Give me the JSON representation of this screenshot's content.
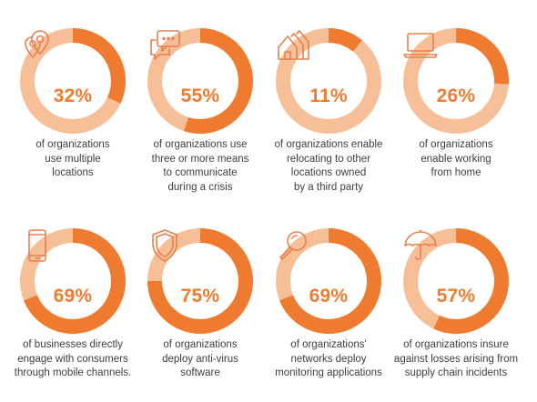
{
  "colors": {
    "filled": "#ee7b30",
    "track": "#f7bf97",
    "icon": "#e8804c",
    "text": "#3e3e3e"
  },
  "chart_data": {
    "type": "pie",
    "title": "",
    "items": [
      {
        "value": 32,
        "label": "32%",
        "description": "of organizations\nuse multiple\nlocations",
        "icon": "location-pins-icon"
      },
      {
        "value": 55,
        "label": "55%",
        "description": "of organizations use\nthree or more means\nto communicate\nduring a crisis",
        "icon": "chat-bubbles-icon"
      },
      {
        "value": 11,
        "label": "11%",
        "description": "of organizations enable\nrelocating to other\nlocations owned\nby a third party",
        "icon": "houses-icon"
      },
      {
        "value": 26,
        "label": "26%",
        "description": "of organizations\nenable working\nfrom home",
        "icon": "laptop-icon"
      },
      {
        "value": 69,
        "label": "69%",
        "description": "of businesses directly\nengage with consumers\nthrough mobile channels.",
        "icon": "smartphone-icon"
      },
      {
        "value": 75,
        "label": "75%",
        "description": "of organizations\ndeploy anti-virus\nsoftware",
        "icon": "shield-icon"
      },
      {
        "value": 69,
        "label": "69%",
        "description": "of organizations'\nnetworks deploy\nmonitoring applications",
        "icon": "magnifier-icon"
      },
      {
        "value": 57,
        "label": "57%",
        "description": "of organizations insure\nagainst losses arising from\nsupply chain incidents",
        "icon": "umbrella-icon"
      }
    ]
  }
}
